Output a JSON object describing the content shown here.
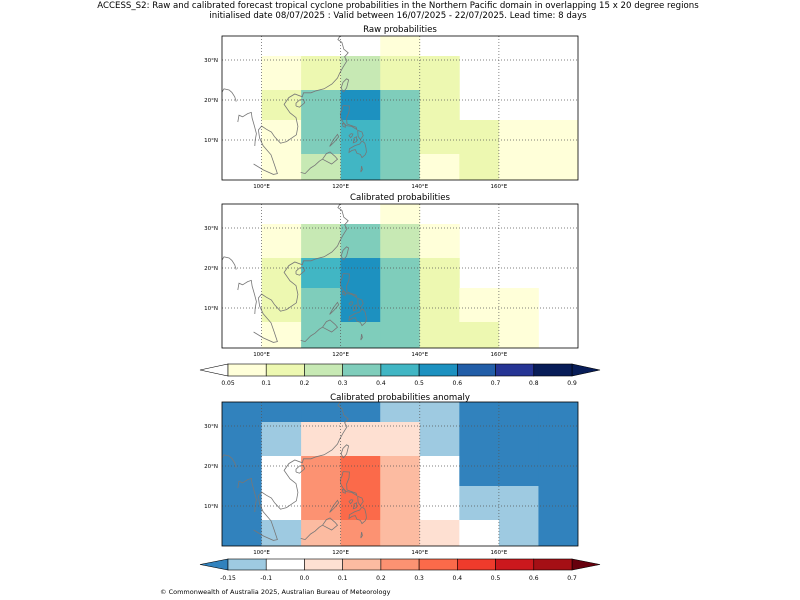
{
  "figure": {
    "title_line1": "ACCESS_S2: Raw and calibrated forecast tropical cyclone probabilities in the Northern Pacific domain in overlapping 15 x 20 degree regions",
    "title_line2": "initialised date 08/07/2025 :  Valid between 16/07/2025 - 22/07/2025. Lead time: 8 days",
    "footer": "© Commonwealth of Australia 2025, Australian Bureau of Meteorology"
  },
  "colors": {
    "prob": [
      "#ffffd9",
      "#edf8b1",
      "#c7e9b4",
      "#7fcdbb",
      "#41b6c4",
      "#1d91c0",
      "#225ea8",
      "#253494",
      "#081d58"
    ],
    "prob_under": "#ffffff",
    "prob_over": "#081d58",
    "anom": [
      "#3182bd",
      "#9ecae1",
      "#ffffff",
      "#fee0d2",
      "#fcbba1",
      "#fc9272",
      "#fb6a4a",
      "#ef3b2c",
      "#cb181d",
      "#a50f15"
    ],
    "anom_under": "#3182bd",
    "anom_over": "#67000d",
    "coast": "#777777"
  },
  "chart_data": [
    {
      "type": "heatmap",
      "title": "Raw probabilities",
      "xlim": [
        90,
        180
      ],
      "ylim": [
        0,
        36
      ],
      "xticks": [
        100,
        120,
        140,
        160
      ],
      "xtick_labels": [
        "100°E",
        "120°E",
        "140°E",
        "160°E"
      ],
      "yticks": [
        10,
        20,
        30
      ],
      "ytick_labels": [
        "10°N",
        "20°N",
        "30°N"
      ],
      "grid": true,
      "x_edges": [
        90,
        100,
        110,
        120,
        130,
        140,
        150,
        160,
        170,
        180
      ],
      "y_edges": [
        0,
        6.5,
        15,
        22.5,
        31,
        36
      ],
      "values": [
        [
          null,
          null,
          null,
          null,
          0.08,
          null,
          null,
          null,
          null
        ],
        [
          null,
          0.08,
          0.11,
          0.25,
          0.13,
          0.13,
          null,
          null,
          null
        ],
        [
          null,
          0.12,
          0.32,
          0.58,
          0.33,
          0.14,
          null,
          null,
          null
        ],
        [
          null,
          0.06,
          0.33,
          0.44,
          0.32,
          0.12,
          0.12,
          0.07,
          0.07
        ],
        [
          null,
          0.06,
          0.23,
          0.42,
          0.36,
          0.07,
          0.14,
          0.07,
          0.07
        ]
      ]
    },
    {
      "type": "heatmap",
      "title": "Calibrated probabilities",
      "xlim": [
        90,
        180
      ],
      "ylim": [
        0,
        36
      ],
      "xticks": [
        100,
        120,
        140,
        160
      ],
      "xtick_labels": [
        "100°E",
        "120°E",
        "140°E",
        "160°E"
      ],
      "yticks": [
        10,
        20,
        30
      ],
      "ytick_labels": [
        "10°N",
        "20°N",
        "30°N"
      ],
      "grid": true,
      "x_edges": [
        90,
        100,
        110,
        120,
        130,
        140,
        150,
        160,
        170,
        180
      ],
      "y_edges": [
        0,
        6.5,
        15,
        22.5,
        31,
        36
      ],
      "values": [
        [
          null,
          null,
          null,
          null,
          0.09,
          null,
          null,
          null,
          null
        ],
        [
          null,
          0.07,
          0.23,
          0.35,
          0.25,
          0.08,
          null,
          null,
          null
        ],
        [
          null,
          0.14,
          0.44,
          0.55,
          0.36,
          0.13,
          null,
          null,
          null
        ],
        [
          null,
          0.12,
          0.34,
          0.54,
          0.36,
          0.13,
          0.07,
          0.07,
          null
        ],
        [
          null,
          0.07,
          0.34,
          0.33,
          0.35,
          0.14,
          0.12,
          0.07,
          null
        ]
      ]
    },
    {
      "type": "heatmap",
      "title": "Calibrated probabilities anomaly",
      "xlim": [
        90,
        180
      ],
      "ylim": [
        0,
        36
      ],
      "xticks": [
        100,
        120,
        140,
        160
      ],
      "xtick_labels": [
        "100°E",
        "120°E",
        "140°E",
        "160°E"
      ],
      "yticks": [
        10,
        20,
        30
      ],
      "ytick_labels": [
        "10°N",
        "20°N",
        "30°N"
      ],
      "grid": true,
      "x_edges": [
        90,
        100,
        110,
        120,
        130,
        140,
        150,
        160,
        170,
        180
      ],
      "y_edges": [
        0,
        6.5,
        15,
        22.5,
        31,
        36
      ],
      "values": [
        [
          -0.2,
          -0.2,
          -0.2,
          -0.2,
          -0.12,
          -0.12,
          -0.2,
          -0.2,
          -0.2
        ],
        [
          -0.2,
          -0.12,
          0.05,
          0.05,
          0.05,
          -0.12,
          -0.2,
          -0.2,
          -0.2
        ],
        [
          -0.2,
          -0.02,
          0.25,
          0.35,
          0.15,
          -0.02,
          -0.2,
          -0.2,
          -0.2
        ],
        [
          -0.2,
          -0.02,
          0.25,
          0.35,
          0.15,
          -0.02,
          -0.12,
          -0.12,
          -0.2
        ],
        [
          -0.2,
          -0.12,
          0.15,
          0.25,
          0.15,
          0.05,
          -0.02,
          -0.12,
          -0.2
        ]
      ]
    }
  ],
  "colorbars": [
    {
      "name": "probability-colorbar",
      "boundaries": [
        0.05,
        0.1,
        0.2,
        0.3,
        0.4,
        0.5,
        0.6,
        0.7,
        0.8,
        0.9
      ],
      "tick_labels": [
        "0.05",
        "0.1",
        "0.2",
        "0.3",
        "0.4",
        "0.5",
        "0.6",
        "0.7",
        "0.8",
        "0.9"
      ]
    },
    {
      "name": "anomaly-colorbar",
      "boundaries": [
        -0.15,
        -0.1,
        0.0,
        0.1,
        0.2,
        0.3,
        0.4,
        0.5,
        0.6,
        0.7
      ],
      "tick_labels": [
        "-0.15",
        "-0.1",
        "0.0",
        "0.1",
        "0.2",
        "0.3",
        "0.4",
        "0.5",
        "0.6",
        "0.7"
      ]
    }
  ]
}
